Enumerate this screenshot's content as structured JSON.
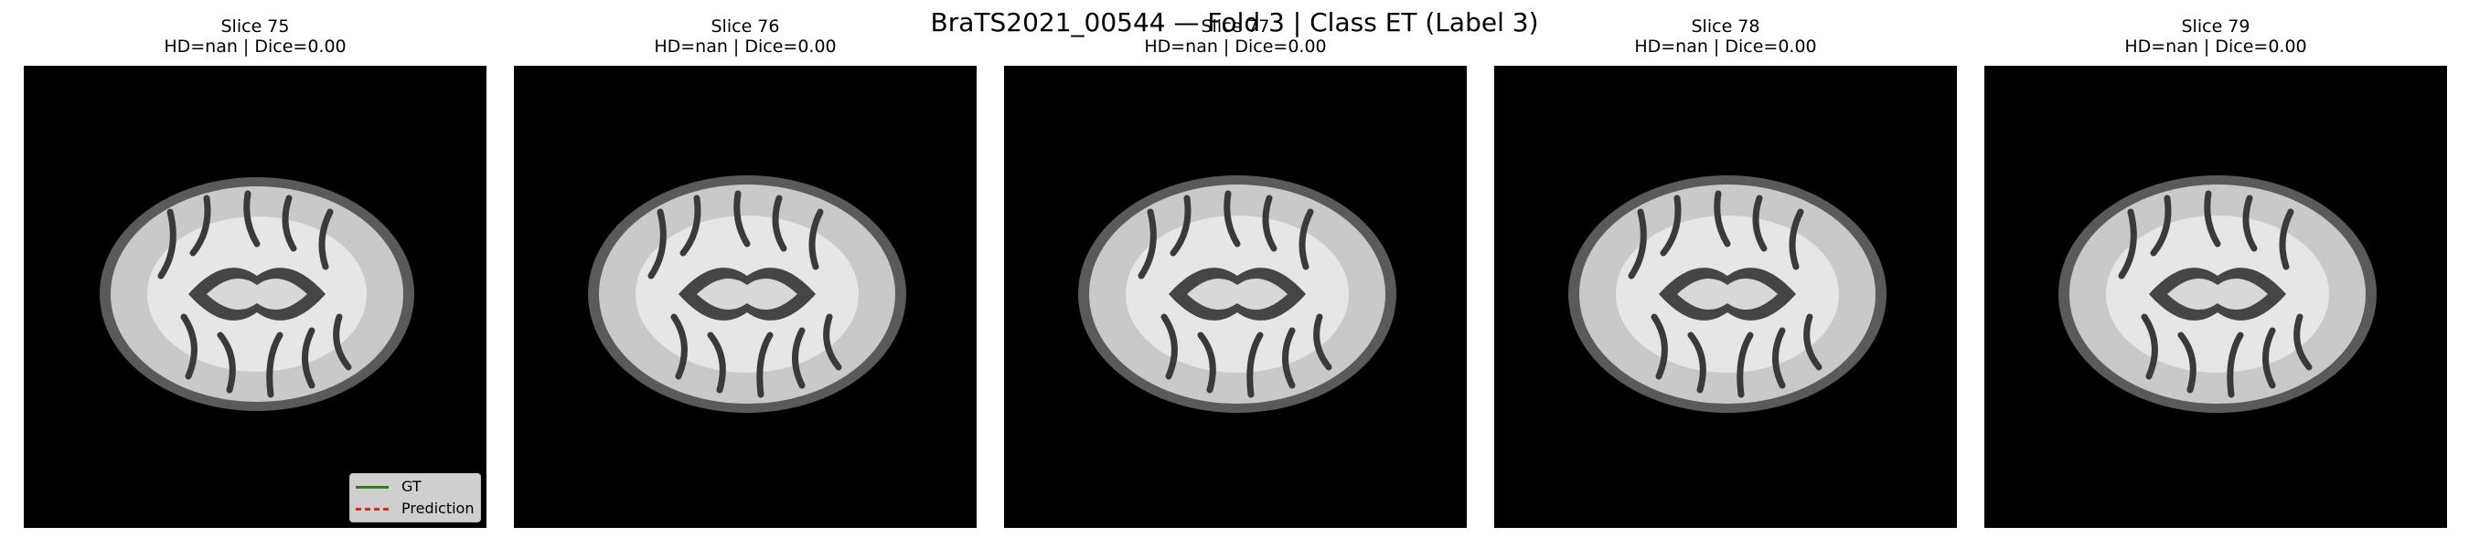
{
  "figure": {
    "title": "BraTS2021_00544 — Fold 3 | Class ET (Label 3)"
  },
  "panels": [
    {
      "title": "Slice 75",
      "metrics": "HD=nan | Dice=0.00"
    },
    {
      "title": "Slice 76",
      "metrics": "HD=nan | Dice=0.00"
    },
    {
      "title": "Slice 77",
      "metrics": "HD=nan | Dice=0.00"
    },
    {
      "title": "Slice 78",
      "metrics": "HD=nan | Dice=0.00"
    },
    {
      "title": "Slice 79",
      "metrics": "HD=nan | Dice=0.00"
    }
  ],
  "legend": {
    "gt_label": "GT",
    "prediction_label": "Prediction",
    "gt_color": "#2e7d1f",
    "prediction_color": "#e8222a"
  }
}
